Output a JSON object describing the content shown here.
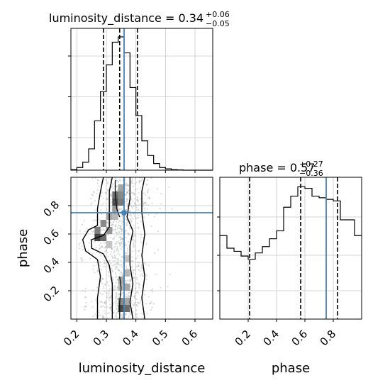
{
  "chart_data": {
    "type": "corner",
    "parameters": [
      "luminosity_distance",
      "phase"
    ],
    "truth_color": "#4682b4",
    "truths": {
      "luminosity_distance": 0.36,
      "phase": 0.75
    },
    "hist_luminosity_distance": {
      "title_prefix": "luminosity_distance = 0.34",
      "err_plus": "+0.06",
      "err_minus": "−0.05",
      "quantiles": [
        0.29,
        0.345,
        0.405
      ],
      "xlim": [
        0.18,
        0.66
      ],
      "bin_edges": [
        0.18,
        0.2,
        0.22,
        0.24,
        0.26,
        0.28,
        0.3,
        0.32,
        0.34,
        0.36,
        0.38,
        0.4,
        0.42,
        0.44,
        0.46,
        0.48,
        0.5,
        0.52,
        0.54,
        0.56,
        0.58,
        0.6,
        0.62,
        0.64,
        0.66
      ],
      "counts": [
        0.004,
        0.02,
        0.06,
        0.16,
        0.37,
        0.59,
        0.79,
        0.96,
        1.0,
        0.88,
        0.62,
        0.41,
        0.22,
        0.11,
        0.05,
        0.02,
        0.01,
        0.004,
        0.002,
        0.0,
        0.0,
        0.0,
        0.0,
        0.0
      ]
    },
    "hist_phase": {
      "title_prefix": "phase = 0.57",
      "err_plus": "+0.27",
      "err_minus": "−0.36",
      "quantiles": [
        0.21,
        0.57,
        0.83
      ],
      "xlim": [
        0.0,
        1.0
      ],
      "bin_edges": [
        0.0,
        0.05,
        0.1,
        0.15,
        0.2,
        0.25,
        0.3,
        0.35,
        0.4,
        0.45,
        0.5,
        0.55,
        0.6,
        0.65,
        0.7,
        0.75,
        0.8,
        0.85,
        0.9,
        0.95,
        1.0
      ],
      "counts": [
        0.53,
        0.45,
        0.43,
        0.4,
        0.38,
        0.42,
        0.46,
        0.51,
        0.56,
        0.71,
        0.78,
        0.84,
        0.83,
        0.78,
        0.77,
        0.76,
        0.75,
        0.63,
        0.63,
        0.53
      ]
    },
    "joint": {
      "xlim": [
        0.18,
        0.66
      ],
      "ylim": [
        0.0,
        1.0
      ],
      "xlabel": "luminosity_distance",
      "ylabel": "phase",
      "x_ticks": [
        0.2,
        0.3,
        0.4,
        0.5,
        0.6
      ],
      "y_ticks": [
        0.2,
        0.4,
        0.6,
        0.8
      ],
      "phase_ticks": [
        0.2,
        0.4,
        0.6,
        0.8
      ]
    }
  }
}
